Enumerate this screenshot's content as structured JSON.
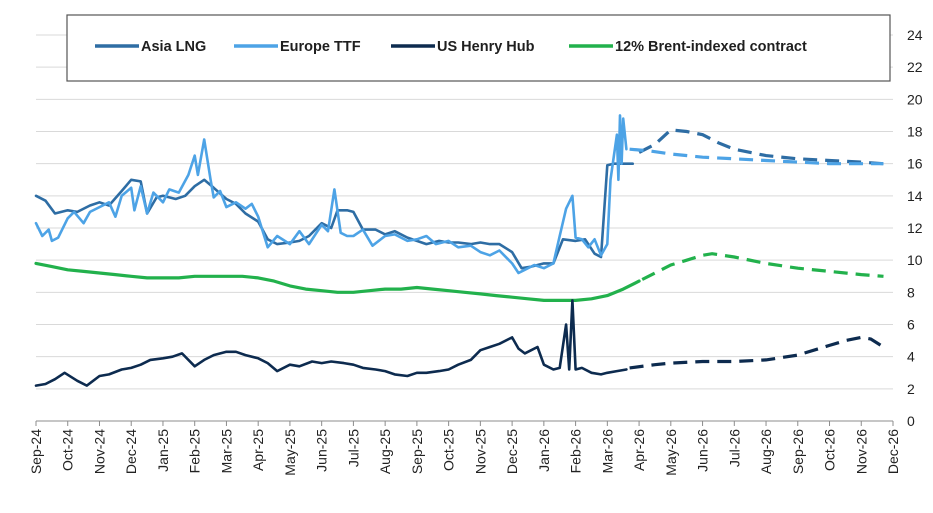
{
  "chart_data": {
    "type": "line",
    "title": "",
    "xlabel": "",
    "ylabel": "",
    "ylim": [
      0,
      24
    ],
    "yticks": [
      0,
      2,
      4,
      6,
      8,
      10,
      12,
      14,
      16,
      18,
      20,
      22,
      24
    ],
    "x_categories": [
      "Sep-24",
      "Oct-24",
      "Nov-24",
      "Dec-24",
      "Jan-25",
      "Feb-25",
      "Mar-25",
      "Apr-25",
      "May-25",
      "Jun-25",
      "Jul-25",
      "Aug-25",
      "Sep-25",
      "Oct-25",
      "Nov-25",
      "Dec-25",
      "Jan-26",
      "Feb-26",
      "Mar-26",
      "Apr-26",
      "May-26",
      "Jun-26",
      "Jul-26",
      "Aug-26",
      "Sep-26",
      "Oct-26",
      "Nov-26",
      "Dec-26"
    ],
    "legend_position": "top",
    "grid": "horizontal",
    "series": [
      {
        "name": "Asia LNG",
        "color": "#2e6da4",
        "historical": [
          [
            0,
            14.0
          ],
          [
            0.3,
            13.7
          ],
          [
            0.6,
            12.9
          ],
          [
            1.0,
            13.1
          ],
          [
            1.3,
            13.0
          ],
          [
            1.7,
            13.4
          ],
          [
            2.0,
            13.6
          ],
          [
            2.3,
            13.4
          ],
          [
            2.7,
            14.3
          ],
          [
            3.0,
            15.0
          ],
          [
            3.3,
            14.9
          ],
          [
            3.5,
            12.9
          ],
          [
            3.8,
            13.9
          ],
          [
            4.0,
            14.0
          ],
          [
            4.4,
            13.8
          ],
          [
            4.7,
            14.0
          ],
          [
            5.0,
            14.6
          ],
          [
            5.3,
            15.0
          ],
          [
            5.6,
            14.5
          ],
          [
            6.0,
            13.8
          ],
          [
            6.3,
            13.5
          ],
          [
            6.6,
            12.9
          ],
          [
            7.0,
            12.4
          ],
          [
            7.3,
            11.3
          ],
          [
            7.6,
            11.0
          ],
          [
            8.0,
            11.1
          ],
          [
            8.3,
            11.2
          ],
          [
            8.6,
            11.5
          ],
          [
            9.0,
            12.3
          ],
          [
            9.3,
            12.0
          ],
          [
            9.5,
            13.1
          ],
          [
            9.8,
            13.1
          ],
          [
            10.0,
            13.0
          ],
          [
            10.3,
            11.9
          ],
          [
            10.7,
            11.9
          ],
          [
            11.0,
            11.6
          ],
          [
            11.3,
            11.8
          ],
          [
            11.7,
            11.4
          ],
          [
            12.0,
            11.2
          ],
          [
            12.3,
            11.0
          ],
          [
            12.7,
            11.2
          ],
          [
            13.0,
            11.1
          ],
          [
            13.3,
            11.1
          ],
          [
            13.7,
            11.0
          ],
          [
            14.0,
            11.1
          ],
          [
            14.3,
            11.0
          ],
          [
            14.6,
            11.0
          ],
          [
            15.0,
            10.5
          ],
          [
            15.3,
            9.5
          ],
          [
            15.6,
            9.6
          ],
          [
            16.0,
            9.8
          ],
          [
            16.3,
            9.8
          ],
          [
            16.6,
            11.3
          ],
          [
            17.0,
            11.2
          ],
          [
            17.3,
            11.3
          ],
          [
            17.6,
            10.4
          ],
          [
            17.8,
            10.2
          ],
          [
            18.0,
            15.9
          ],
          [
            18.2,
            16.0
          ],
          [
            18.6,
            16.0
          ],
          [
            18.8,
            16.0
          ]
        ],
        "forecast": [
          [
            19.0,
            16.7
          ],
          [
            19.5,
            17.2
          ],
          [
            20.0,
            18.1
          ],
          [
            20.5,
            18.0
          ],
          [
            21.0,
            17.8
          ],
          [
            21.5,
            17.3
          ],
          [
            22.0,
            16.9
          ],
          [
            23.0,
            16.5
          ],
          [
            24.0,
            16.3
          ],
          [
            25.0,
            16.2
          ],
          [
            26.0,
            16.1
          ],
          [
            26.7,
            16.0
          ]
        ]
      },
      {
        "name": "Europe TTF",
        "color": "#4da3e6",
        "historical": [
          [
            0,
            12.3
          ],
          [
            0.2,
            11.5
          ],
          [
            0.4,
            11.9
          ],
          [
            0.5,
            11.2
          ],
          [
            0.7,
            11.4
          ],
          [
            1.0,
            12.6
          ],
          [
            1.2,
            13.0
          ],
          [
            1.5,
            12.3
          ],
          [
            1.7,
            13.0
          ],
          [
            2.0,
            13.3
          ],
          [
            2.3,
            13.6
          ],
          [
            2.5,
            12.7
          ],
          [
            2.7,
            14.0
          ],
          [
            3.0,
            14.5
          ],
          [
            3.1,
            13.1
          ],
          [
            3.3,
            14.6
          ],
          [
            3.5,
            12.9
          ],
          [
            3.7,
            14.2
          ],
          [
            4.0,
            13.6
          ],
          [
            4.2,
            14.4
          ],
          [
            4.5,
            14.2
          ],
          [
            4.8,
            15.3
          ],
          [
            5.0,
            16.5
          ],
          [
            5.1,
            15.3
          ],
          [
            5.3,
            17.5
          ],
          [
            5.5,
            15.0
          ],
          [
            5.6,
            13.9
          ],
          [
            5.8,
            14.3
          ],
          [
            6.0,
            13.3
          ],
          [
            6.3,
            13.6
          ],
          [
            6.6,
            13.2
          ],
          [
            6.8,
            13.5
          ],
          [
            7.0,
            12.7
          ],
          [
            7.3,
            10.8
          ],
          [
            7.6,
            11.5
          ],
          [
            8.0,
            11.0
          ],
          [
            8.3,
            11.8
          ],
          [
            8.6,
            11.0
          ],
          [
            9.0,
            12.2
          ],
          [
            9.2,
            11.8
          ],
          [
            9.4,
            14.4
          ],
          [
            9.6,
            11.7
          ],
          [
            9.8,
            11.5
          ],
          [
            10.0,
            11.5
          ],
          [
            10.3,
            11.9
          ],
          [
            10.6,
            10.9
          ],
          [
            11.0,
            11.5
          ],
          [
            11.3,
            11.6
          ],
          [
            11.7,
            11.2
          ],
          [
            12.0,
            11.3
          ],
          [
            12.3,
            11.5
          ],
          [
            12.6,
            11.0
          ],
          [
            13.0,
            11.2
          ],
          [
            13.3,
            10.8
          ],
          [
            13.7,
            10.9
          ],
          [
            14.0,
            10.5
          ],
          [
            14.3,
            10.3
          ],
          [
            14.6,
            10.6
          ],
          [
            15.0,
            9.8
          ],
          [
            15.2,
            9.2
          ],
          [
            15.4,
            9.4
          ],
          [
            15.7,
            9.7
          ],
          [
            16.0,
            9.5
          ],
          [
            16.3,
            9.8
          ],
          [
            16.5,
            11.5
          ],
          [
            16.7,
            13.2
          ],
          [
            16.9,
            14.0
          ],
          [
            17.0,
            11.4
          ],
          [
            17.2,
            11.3
          ],
          [
            17.4,
            10.8
          ],
          [
            17.6,
            11.3
          ],
          [
            17.8,
            10.3
          ],
          [
            18.0,
            11.0
          ],
          [
            18.1,
            15.0
          ],
          [
            18.2,
            16.4
          ],
          [
            18.3,
            17.8
          ],
          [
            18.35,
            15.0
          ],
          [
            18.4,
            19.0
          ],
          [
            18.45,
            16.0
          ],
          [
            18.5,
            18.8
          ],
          [
            18.6,
            16.9
          ]
        ],
        "forecast": [
          [
            18.7,
            16.9
          ],
          [
            19.3,
            16.8
          ],
          [
            20.0,
            16.6
          ],
          [
            21.0,
            16.4
          ],
          [
            22.0,
            16.3
          ],
          [
            23.0,
            16.2
          ],
          [
            24.0,
            16.1
          ],
          [
            25.0,
            16.0
          ],
          [
            26.0,
            16.0
          ],
          [
            26.7,
            16.0
          ]
        ]
      },
      {
        "name": "US Henry Hub",
        "color": "#0d2b4f",
        "historical": [
          [
            0,
            2.2
          ],
          [
            0.3,
            2.3
          ],
          [
            0.6,
            2.6
          ],
          [
            0.9,
            3.0
          ],
          [
            1.3,
            2.5
          ],
          [
            1.6,
            2.2
          ],
          [
            2.0,
            2.8
          ],
          [
            2.3,
            2.9
          ],
          [
            2.7,
            3.2
          ],
          [
            3.0,
            3.3
          ],
          [
            3.3,
            3.5
          ],
          [
            3.6,
            3.8
          ],
          [
            4.0,
            3.9
          ],
          [
            4.3,
            4.0
          ],
          [
            4.6,
            4.2
          ],
          [
            5.0,
            3.4
          ],
          [
            5.3,
            3.8
          ],
          [
            5.6,
            4.1
          ],
          [
            6.0,
            4.3
          ],
          [
            6.3,
            4.3
          ],
          [
            6.6,
            4.1
          ],
          [
            7.0,
            3.9
          ],
          [
            7.3,
            3.6
          ],
          [
            7.6,
            3.1
          ],
          [
            8.0,
            3.5
          ],
          [
            8.3,
            3.4
          ],
          [
            8.7,
            3.7
          ],
          [
            9.0,
            3.6
          ],
          [
            9.3,
            3.7
          ],
          [
            9.7,
            3.6
          ],
          [
            10.0,
            3.5
          ],
          [
            10.3,
            3.3
          ],
          [
            10.7,
            3.2
          ],
          [
            11.0,
            3.1
          ],
          [
            11.3,
            2.9
          ],
          [
            11.7,
            2.8
          ],
          [
            12.0,
            3.0
          ],
          [
            12.3,
            3.0
          ],
          [
            12.7,
            3.1
          ],
          [
            13.0,
            3.2
          ],
          [
            13.3,
            3.5
          ],
          [
            13.7,
            3.8
          ],
          [
            14.0,
            4.4
          ],
          [
            14.3,
            4.6
          ],
          [
            14.6,
            4.8
          ],
          [
            15.0,
            5.2
          ],
          [
            15.2,
            4.5
          ],
          [
            15.4,
            4.2
          ],
          [
            15.6,
            4.4
          ],
          [
            15.8,
            4.6
          ],
          [
            16.0,
            3.5
          ],
          [
            16.3,
            3.2
          ],
          [
            16.5,
            3.3
          ],
          [
            16.7,
            6.0
          ],
          [
            16.8,
            3.2
          ],
          [
            16.9,
            7.5
          ],
          [
            17.0,
            3.2
          ],
          [
            17.2,
            3.3
          ],
          [
            17.5,
            3.0
          ],
          [
            17.8,
            2.9
          ],
          [
            18.0,
            3.0
          ],
          [
            18.3,
            3.1
          ],
          [
            18.6,
            3.2
          ]
        ],
        "forecast": [
          [
            18.7,
            3.3
          ],
          [
            19.5,
            3.5
          ],
          [
            20.0,
            3.6
          ],
          [
            21.0,
            3.7
          ],
          [
            22.0,
            3.7
          ],
          [
            23.0,
            3.8
          ],
          [
            24.0,
            4.1
          ],
          [
            25.0,
            4.7
          ],
          [
            25.5,
            5.0
          ],
          [
            26.0,
            5.2
          ],
          [
            26.3,
            5.1
          ],
          [
            26.7,
            4.6
          ]
        ]
      },
      {
        "name": "12% Brent-indexed contract",
        "color": "#22b14c",
        "historical": [
          [
            0,
            9.8
          ],
          [
            0.5,
            9.6
          ],
          [
            1.0,
            9.4
          ],
          [
            1.5,
            9.3
          ],
          [
            2.0,
            9.2
          ],
          [
            2.5,
            9.1
          ],
          [
            3.0,
            9.0
          ],
          [
            3.5,
            8.9
          ],
          [
            4.0,
            8.9
          ],
          [
            4.5,
            8.9
          ],
          [
            5.0,
            9.0
          ],
          [
            5.5,
            9.0
          ],
          [
            6.0,
            9.0
          ],
          [
            6.5,
            9.0
          ],
          [
            7.0,
            8.9
          ],
          [
            7.5,
            8.7
          ],
          [
            8.0,
            8.4
          ],
          [
            8.5,
            8.2
          ],
          [
            9.0,
            8.1
          ],
          [
            9.5,
            8.0
          ],
          [
            10.0,
            8.0
          ],
          [
            10.5,
            8.1
          ],
          [
            11.0,
            8.2
          ],
          [
            11.5,
            8.2
          ],
          [
            12.0,
            8.3
          ],
          [
            12.5,
            8.2
          ],
          [
            13.0,
            8.1
          ],
          [
            13.5,
            8.0
          ],
          [
            14.0,
            7.9
          ],
          [
            14.5,
            7.8
          ],
          [
            15.0,
            7.7
          ],
          [
            15.5,
            7.6
          ],
          [
            16.0,
            7.5
          ],
          [
            16.5,
            7.5
          ],
          [
            17.0,
            7.5
          ],
          [
            17.5,
            7.6
          ],
          [
            18.0,
            7.8
          ],
          [
            18.5,
            8.2
          ],
          [
            19.0,
            8.7
          ]
        ],
        "forecast": [
          [
            19.1,
            8.8
          ],
          [
            19.6,
            9.3
          ],
          [
            20.0,
            9.7
          ],
          [
            20.5,
            10.0
          ],
          [
            21.0,
            10.3
          ],
          [
            21.3,
            10.4
          ],
          [
            22.0,
            10.2
          ],
          [
            23.0,
            9.8
          ],
          [
            24.0,
            9.5
          ],
          [
            25.0,
            9.3
          ],
          [
            26.0,
            9.1
          ],
          [
            26.7,
            9.0
          ]
        ]
      }
    ]
  }
}
